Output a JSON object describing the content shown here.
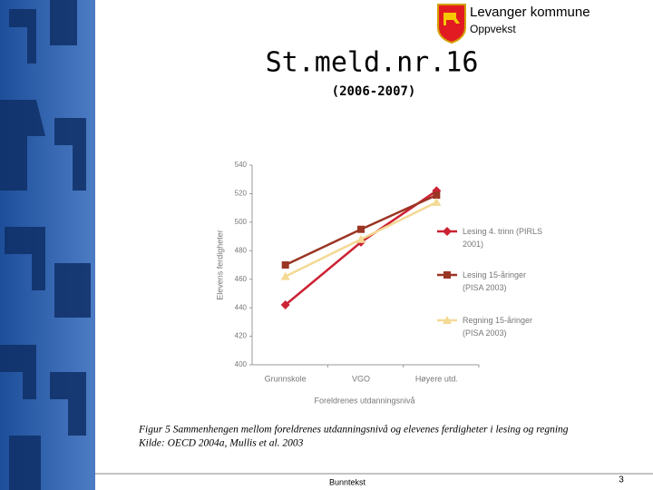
{
  "header": {
    "organization": "Levanger kommune",
    "unit": "Oppvekst",
    "title": "St.meld.nr.16",
    "subtitle": "(2006-2007)"
  },
  "chart_data": {
    "type": "line",
    "y_label": "Elevens ferdigheter",
    "x_label": "Foreldrenes utdanningsnivå",
    "categories": [
      "Grunnskole",
      "VGO",
      "Høyere utd."
    ],
    "series": [
      {
        "name": "Lesing 4. trinn (PIRLS 2001)",
        "color": "#cc2233",
        "marker": "diamond",
        "values": [
          442,
          486,
          522
        ]
      },
      {
        "name": "Lesing 15-åringer (PISA 2003)",
        "color": "#9b3524",
        "marker": "square",
        "values": [
          470,
          495,
          519
        ]
      },
      {
        "name": "Regning 15-åringer (PISA 2003)",
        "color": "#f3d994",
        "marker": "triangle",
        "values": [
          462,
          488,
          514
        ]
      }
    ],
    "ylim": [
      400,
      540
    ],
    "yticks": [
      400,
      420,
      440,
      460,
      480,
      500,
      520,
      540
    ],
    "grid": false,
    "legend": "right"
  },
  "caption": {
    "figure": "Figur 5 Sammenhengen mellom foreldrenes utdanningsnivå og elevenes ferdigheter i lesing og regning",
    "source": "Kilde: OECD 2004a, Mullis et al. 2003"
  },
  "footer": {
    "text": "Bunntekst",
    "page": "3"
  }
}
